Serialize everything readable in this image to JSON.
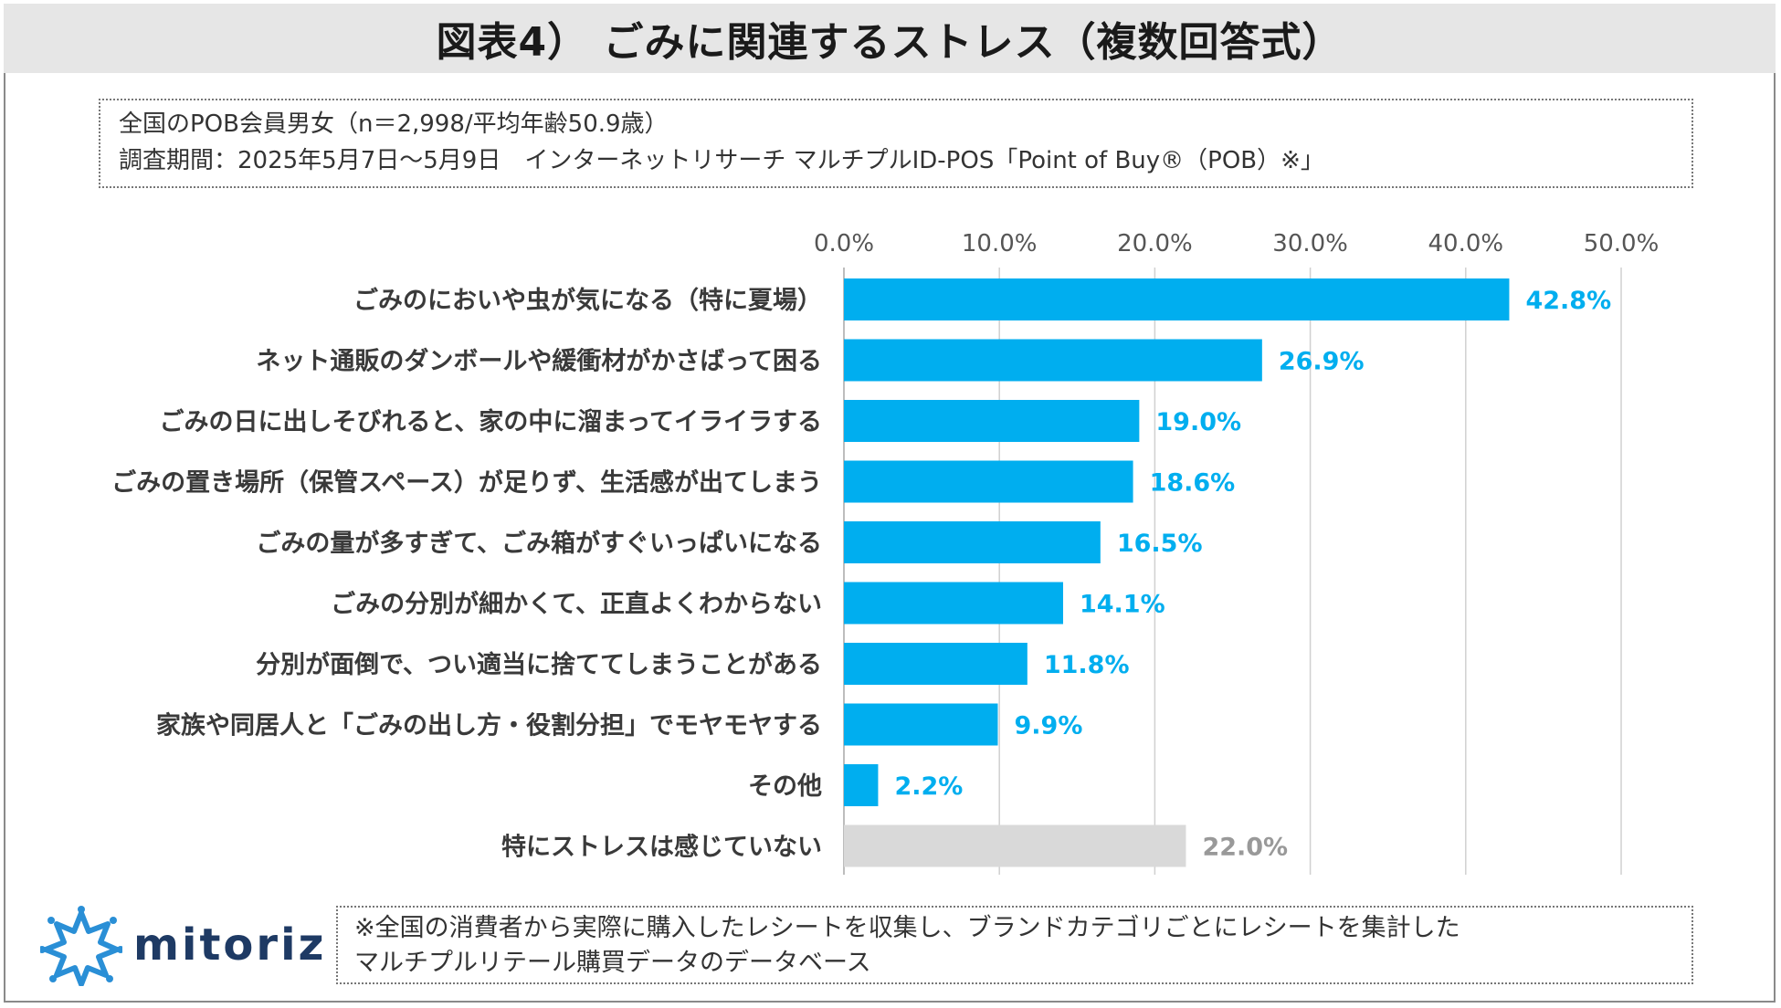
{
  "header": {
    "title": "図表4） ごみに関連するストレス（複数回答式）"
  },
  "info": {
    "line1": "全国のPOB会員男女（n＝2,998/平均年齢50.9歳）",
    "line2": "調査期間：2025年5月7日～5月9日　インターネットリサーチ マルチプルID-POS「Point of Buy®（POB）※」"
  },
  "footer": {
    "logo_text": "mitoriz",
    "note_line1": "※全国の消費者から実際に購入したレシートを収集し、ブランドカテゴリごとにレシートを集計した",
    "note_line2": "マルチプルリテール購買データのデータベース"
  },
  "colors": {
    "bar": "#00aeef",
    "bar_muted": "#d9d9d9",
    "value_text": "#00aeef",
    "value_text_muted": "#999999",
    "gridline": "#d0d0d0"
  },
  "chart_data": {
    "type": "bar",
    "orientation": "horizontal",
    "title": "ごみに関連するストレス（複数回答式）",
    "xlabel": "",
    "ylabel": "",
    "xlim": [
      0,
      50
    ],
    "grid": true,
    "ticks": [
      0,
      10,
      20,
      30,
      40,
      50
    ],
    "tick_labels": [
      "0.0%",
      "10.0%",
      "20.0%",
      "30.0%",
      "40.0%",
      "50.0%"
    ],
    "categories": [
      "ごみのにおいや虫が気になる（特に夏場）",
      "ネット通販のダンボールや緩衝材がかさばって困る",
      "ごみの日に出しそびれると、家の中に溜まってイライラする",
      "ごみの置き場所（保管スペース）が足りず、生活感が出てしまう",
      "ごみの量が多すぎて、ごみ箱がすぐいっぱいになる",
      "ごみの分別が細かくて、正直よくわからない",
      "分別が面倒で、つい適当に捨ててしまうことがある",
      "家族や同居人と「ごみの出し方・役割分担」でモヤモヤする",
      "その他",
      "特にストレスは感じていない"
    ],
    "values": [
      42.8,
      26.9,
      19.0,
      18.6,
      16.5,
      14.1,
      11.8,
      9.9,
      2.2,
      22.0
    ],
    "value_labels": [
      "42.8%",
      "26.9%",
      "19.0%",
      "18.6%",
      "16.5%",
      "14.1%",
      "11.8%",
      "9.9%",
      "2.2%",
      "22.0%"
    ],
    "muted": [
      false,
      false,
      false,
      false,
      false,
      false,
      false,
      false,
      false,
      true
    ]
  }
}
